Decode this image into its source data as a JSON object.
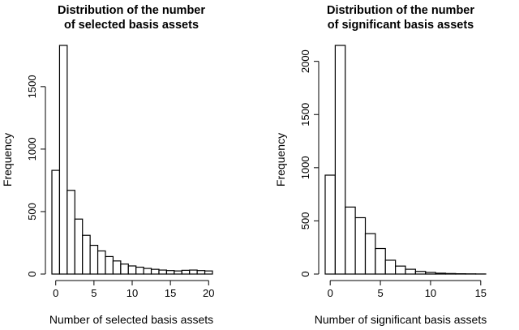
{
  "chart_data": [
    {
      "type": "bar",
      "title_line1": "Distribution of the number",
      "title_line2": "of selected basis assets",
      "xlabel": "Number of selected basis assets",
      "ylabel": "Frequency",
      "bin_width": 1,
      "bin_start": -0.5,
      "values": [
        830,
        1830,
        670,
        440,
        310,
        230,
        185,
        140,
        105,
        80,
        65,
        55,
        45,
        38,
        32,
        28,
        25,
        30,
        32,
        28,
        25
      ],
      "xlim": [
        -0.5,
        20.5
      ],
      "ylim": [
        0,
        1830
      ],
      "xticks": [
        0,
        5,
        10,
        15,
        20
      ],
      "yticks": [
        0,
        500,
        1000,
        1500
      ]
    },
    {
      "type": "bar",
      "title_line1": "Distribution of the number",
      "title_line2": "of significant basis assets",
      "xlabel": "Number of significant basis assets",
      "ylabel": "Frequency",
      "bin_width": 1,
      "bin_start": -0.5,
      "values": [
        930,
        2150,
        630,
        530,
        380,
        240,
        130,
        75,
        45,
        25,
        15,
        8,
        5,
        3,
        2,
        1
      ],
      "xlim": [
        -0.5,
        15.5
      ],
      "ylim": [
        0,
        2150
      ],
      "xticks": [
        0,
        5,
        10,
        15
      ],
      "yticks": [
        0,
        500,
        1000,
        1500,
        2000
      ]
    }
  ]
}
